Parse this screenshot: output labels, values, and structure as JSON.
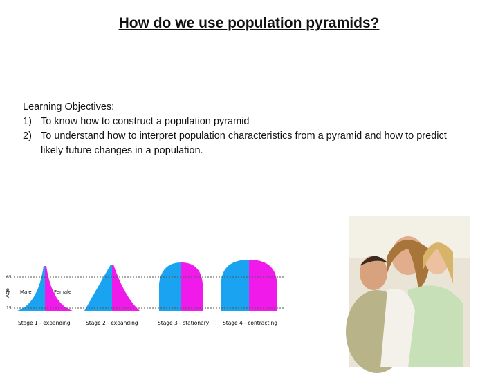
{
  "title": "How do we use population pyramids?",
  "objectives": {
    "heading": "Learning Objectives:",
    "items": [
      {
        "number": "1)",
        "text": "To know how to construct a population pyramid"
      },
      {
        "number": "2)",
        "text": "To understand how to interpret population characteristics from a pyramid and how to predict likely future changes in a population."
      }
    ]
  },
  "diagram": {
    "axis_label": "Age",
    "age_lines": [
      "65",
      "15"
    ],
    "male_label": "Male",
    "female_label": "Female",
    "stages": [
      "Stage 1 - expanding",
      "Stage 2 - expanding",
      "Stage 3 - stationary",
      "Stage 4 - contracting"
    ]
  }
}
